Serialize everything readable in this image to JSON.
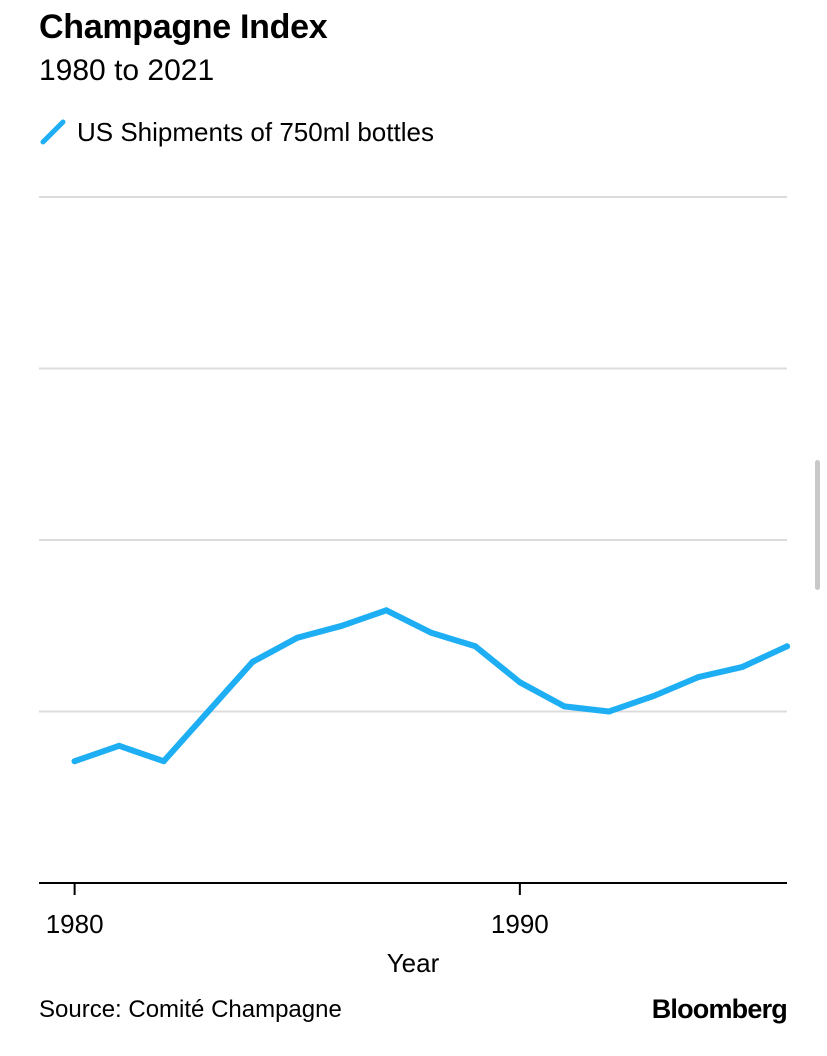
{
  "chart_data": {
    "type": "line",
    "title": "Champagne Index",
    "subtitle": "1980 to 2021",
    "xlabel": "Year",
    "ylabel": "",
    "x": [
      1980,
      1981,
      1982,
      1983,
      1984,
      1985,
      1986,
      1987,
      1988,
      1989,
      1990,
      1991,
      1992,
      1993,
      1994,
      1995,
      1996
    ],
    "x_ticks": [
      1980,
      1990
    ],
    "xlim": [
      1979.2,
      1996
    ],
    "ylim": [
      0,
      4
    ],
    "y_gridlines": [
      1,
      2,
      3,
      4
    ],
    "grid": true,
    "legend": "top-left",
    "series": [
      {
        "name": "US Shipments of 750ml bottles",
        "color": "#1eaef3",
        "values": [
          0.71,
          0.8,
          0.71,
          1.0,
          1.29,
          1.43,
          1.5,
          1.59,
          1.46,
          1.38,
          1.17,
          1.03,
          1.0,
          1.09,
          1.2,
          1.26,
          1.38
        ]
      }
    ]
  },
  "source": "Source: Comité Champagne",
  "brand": "Bloomberg"
}
